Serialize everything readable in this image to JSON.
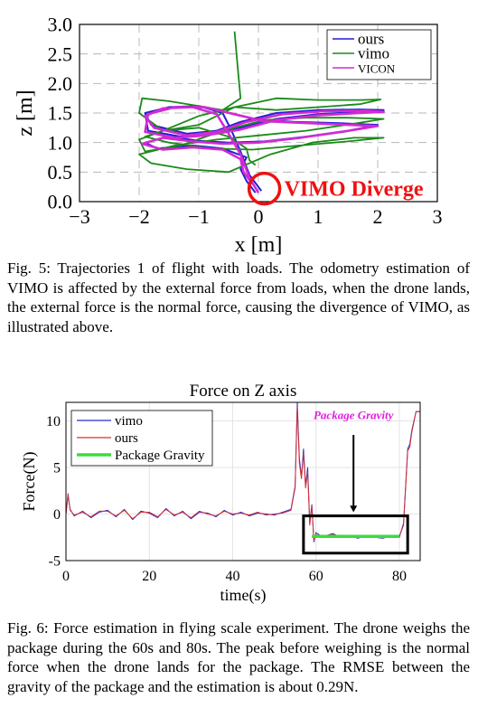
{
  "figures": [
    {
      "caption": {
        "label": "Fig. 5:",
        "text": "Trajectories 1 of flight with loads. The odometry estimation of VIMO is affected by the external force from loads, when the drone lands, the external force is the normal force, causing the divergence of VIMO, as illustrated above."
      },
      "chart_data": {
        "type": "line",
        "title": "",
        "xlabel": "x [m]",
        "ylabel": "z [m]",
        "xlim": [
          -3,
          3
        ],
        "ylim": [
          0,
          3
        ],
        "xticks": [
          "−3",
          "−2",
          "−1",
          "0",
          "1",
          "2",
          "3"
        ],
        "yticks": [
          "0.0",
          "0.5",
          "1.0",
          "1.5",
          "2.0",
          "2.5",
          "3.0"
        ],
        "grid": true,
        "legend_position": "top-right",
        "annotation": "VIMO Diverge",
        "series": [
          {
            "name": "ours",
            "color": "#1f1fd6",
            "x": [
              0.05,
              -0.15,
              -0.3,
              -0.45,
              -0.6,
              -1.0,
              -1.5,
              -1.9,
              -1.8,
              -1.2,
              -0.7,
              -0.3,
              0.3,
              1.0,
              1.7,
              2.1,
              1.7,
              1.0,
              0.3,
              -0.3,
              -0.8,
              -1.3,
              -1.85,
              -1.9,
              -1.5,
              -1.0,
              -0.5,
              0.0,
              0.6,
              1.3,
              2.0,
              1.5,
              0.8,
              0.1,
              -0.5,
              -1.0,
              -1.5,
              -1.9,
              -1.7,
              -1.1,
              -0.6,
              -0.2,
              -0.3,
              -0.2,
              -0.05
            ],
            "y": [
              0.18,
              0.45,
              0.85,
              1.2,
              1.5,
              1.62,
              1.6,
              1.5,
              1.3,
              1.15,
              1.2,
              1.35,
              1.5,
              1.55,
              1.56,
              1.55,
              1.52,
              1.48,
              1.4,
              1.25,
              1.15,
              1.1,
              1.2,
              1.5,
              1.58,
              1.62,
              1.5,
              1.38,
              1.35,
              1.33,
              1.3,
              1.2,
              1.1,
              1.02,
              1.0,
              1.03,
              1.1,
              1.0,
              0.9,
              0.95,
              0.9,
              0.75,
              0.55,
              0.35,
              0.15
            ]
          },
          {
            "name": "vimo",
            "color": "#1a8a1a",
            "x": [
              -0.4,
              -0.35,
              -0.3,
              -0.6,
              -1.0,
              -1.5,
              -1.95,
              -2.0,
              -1.6,
              -1.0,
              -0.4,
              0.3,
              1.0,
              1.7,
              2.05,
              1.7,
              1.0,
              0.3,
              -0.4,
              -1.0,
              -1.6,
              -2.0,
              -1.9,
              -1.3,
              -0.6,
              0.1,
              0.8,
              1.5,
              2.1,
              1.6,
              0.8,
              0.0,
              -0.7,
              -1.4,
              -2.0,
              -1.8,
              -1.2,
              -0.5,
              0.2,
              0.9,
              1.6,
              2.1,
              1.5,
              0.7,
              -0.1,
              -0.8,
              -1.5,
              -1.9,
              -1.6,
              -1.0,
              -0.5,
              -0.2,
              -0.15,
              -0.05
            ],
            "y": [
              2.88,
              2.3,
              1.75,
              1.55,
              1.62,
              1.7,
              1.75,
              1.5,
              1.2,
              1.3,
              1.6,
              1.75,
              1.72,
              1.72,
              1.73,
              1.65,
              1.6,
              1.55,
              1.6,
              1.45,
              1.2,
              1.05,
              0.85,
              0.95,
              1.2,
              1.38,
              1.42,
              1.42,
              1.4,
              1.32,
              1.2,
              1.12,
              1.05,
              0.95,
              0.8,
              0.65,
              0.55,
              0.5,
              0.8,
              1.0,
              1.08,
              1.08,
              1.02,
              0.95,
              0.88,
              0.9,
              1.0,
              1.1,
              1.2,
              1.25,
              1.1,
              0.9,
              0.7,
              0.62
            ]
          },
          {
            "name": "VICON",
            "color": "#d22bd2",
            "x": [
              0.0,
              -0.15,
              -0.3,
              -0.5,
              -0.7,
              -1.1,
              -1.6,
              -1.9,
              -1.75,
              -1.2,
              -0.7,
              -0.2,
              0.4,
              1.1,
              1.8,
              2.1,
              1.7,
              1.0,
              0.3,
              -0.3,
              -0.9,
              -1.4,
              -1.9,
              -1.85,
              -1.4,
              -0.9,
              -0.4,
              0.1,
              0.8,
              1.5,
              2.0,
              1.4,
              0.7,
              0.0,
              -0.6,
              -1.1,
              -1.6,
              -1.95,
              -1.6,
              -1.1,
              -0.6,
              -0.3,
              -0.25,
              -0.1
            ],
            "y": [
              0.15,
              0.4,
              0.8,
              1.15,
              1.48,
              1.6,
              1.58,
              1.45,
              1.25,
              1.12,
              1.18,
              1.35,
              1.48,
              1.53,
              1.54,
              1.52,
              1.5,
              1.46,
              1.38,
              1.22,
              1.12,
              1.08,
              1.18,
              1.48,
              1.6,
              1.6,
              1.48,
              1.36,
              1.33,
              1.3,
              1.28,
              1.18,
              1.08,
              1.0,
              0.98,
              1.02,
              1.08,
              0.98,
              0.88,
              0.92,
              0.88,
              0.72,
              0.5,
              0.3
            ]
          }
        ]
      }
    },
    {
      "caption": {
        "label": "Fig. 6:",
        "text": "Force estimation in flying scale experiment. The drone weighs the package during the 60s and 80s. The peak before weighing is the normal force when the drone lands for the package. The RMSE between the gravity of the package and the estimation is about 0.29N."
      },
      "chart_data": {
        "type": "line",
        "title": "Force on Z axis",
        "xlabel": "time(s)",
        "ylabel": "Force(N)",
        "xlim": [
          0,
          85
        ],
        "ylim": [
          -5,
          12
        ],
        "xticks": [
          "0",
          "20",
          "40",
          "60",
          "80"
        ],
        "yticks": [
          "-5",
          "0",
          "5",
          "10"
        ],
        "grid": true,
        "legend_position": "top-left",
        "annotation": "Package Gravity",
        "series": [
          {
            "name": "vimo",
            "color": "#2a2ad0",
            "x": [
              0,
              0.5,
              1,
              2,
              4,
              6,
              8,
              10,
              12,
              14,
              16,
              18,
              20,
              22,
              24,
              26,
              28,
              30,
              32,
              34,
              36,
              38,
              40,
              42,
              44,
              46,
              48,
              50,
              52,
              54,
              55,
              55.5,
              56,
              56.5,
              57,
              57.5,
              58,
              58.5,
              59,
              59.5,
              60,
              61,
              62,
              64,
              66,
              68,
              70,
              72,
              74,
              76,
              78,
              80,
              81,
              81.5,
              82,
              82.5,
              83,
              84,
              85
            ],
            "y": [
              0,
              2,
              0.5,
              -0.2,
              0.3,
              -0.4,
              0.2,
              0.4,
              -0.3,
              0.5,
              -0.6,
              0.3,
              0.1,
              -0.4,
              0.6,
              -0.2,
              0.3,
              -0.5,
              0.2,
              0.1,
              -0.3,
              0.4,
              -0.1,
              0.2,
              -0.2,
              0.1,
              0.0,
              -0.1,
              0.2,
              0.5,
              3,
              12,
              6,
              4,
              7,
              3,
              5,
              -1,
              1,
              -3,
              -2,
              -2.3,
              -2.4,
              -2.1,
              -2.5,
              -2.3,
              -2.6,
              -2.4,
              -2.5,
              -2.6,
              -2.4,
              -2.5,
              -1,
              3,
              7,
              7.5,
              9,
              11,
              11
            ]
          },
          {
            "name": "ours",
            "color": "#d23030",
            "x": [
              0,
              0.5,
              1,
              2,
              4,
              6,
              8,
              10,
              12,
              14,
              16,
              18,
              20,
              22,
              24,
              26,
              28,
              30,
              32,
              34,
              36,
              38,
              40,
              42,
              44,
              46,
              48,
              50,
              52,
              54,
              55,
              55.5,
              56,
              56.5,
              57,
              57.5,
              58,
              58.5,
              59,
              59.5,
              60,
              61,
              62,
              64,
              66,
              68,
              70,
              72,
              74,
              76,
              78,
              80,
              81,
              81.5,
              82,
              82.5,
              83,
              84,
              85
            ],
            "y": [
              0,
              2.2,
              0.4,
              -0.1,
              0.2,
              -0.3,
              0.3,
              0.3,
              -0.2,
              0.4,
              -0.5,
              0.2,
              0.2,
              -0.3,
              0.5,
              -0.1,
              0.2,
              -0.4,
              0.3,
              0.0,
              -0.2,
              0.3,
              0.0,
              0.1,
              -0.1,
              0.2,
              -0.1,
              0.0,
              0.1,
              0.4,
              2.8,
              11.5,
              5.5,
              3.8,
              6.5,
              2.8,
              4.5,
              -1.2,
              0.8,
              -2.8,
              -2.2,
              -2.4,
              -2.3,
              -2.2,
              -2.4,
              -2.4,
              -2.5,
              -2.5,
              -2.4,
              -2.5,
              -2.5,
              -2.4,
              -1.2,
              2.8,
              6.8,
              7.2,
              8.8,
              11,
              11
            ]
          },
          {
            "name": "Package Gravity",
            "color": "#3ddb3d",
            "x": [
              59,
              80
            ],
            "y": [
              -2.4,
              -2.4
            ]
          }
        ]
      }
    }
  ]
}
